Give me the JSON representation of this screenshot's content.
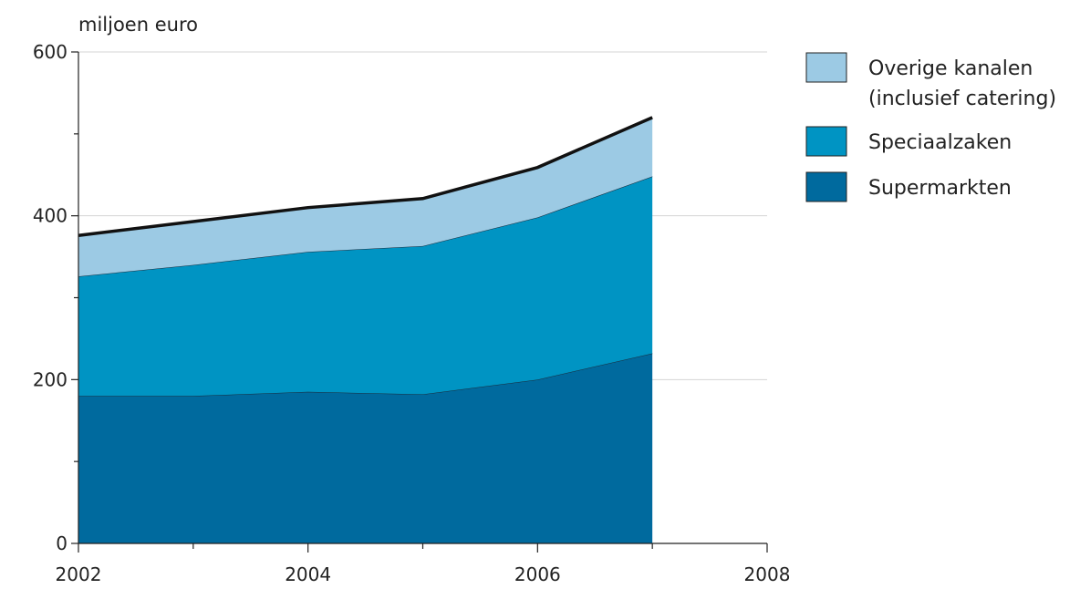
{
  "chart_data": {
    "type": "area",
    "stacked": true,
    "ylabel": "miljoen euro",
    "xlabel": "",
    "xlim": [
      2002,
      2008
    ],
    "ylim": [
      0,
      600
    ],
    "x_ticks": [
      "2002",
      "2004",
      "2006",
      "2008"
    ],
    "y_ticks": [
      "0",
      "200",
      "400",
      "600"
    ],
    "grid": "horizontal",
    "legend_position": "right",
    "x": [
      2002,
      2003,
      2004,
      2005,
      2006,
      2007
    ],
    "series": [
      {
        "name": "Supermarkten",
        "values": [
          180,
          180,
          185,
          182,
          200,
          232
        ],
        "color": "#006a9e"
      },
      {
        "name": "Speciaalzaken",
        "values": [
          146,
          160,
          171,
          181,
          198,
          216
        ],
        "color": "#0094c3"
      },
      {
        "name": "Overige kanalen (inclusief catering)",
        "values": [
          50,
          53,
          54,
          58,
          61,
          72
        ],
        "color": "#9ccae4"
      }
    ],
    "legend": [
      {
        "lines": [
          "Overige kanalen",
          "(inclusief catering)"
        ],
        "color": "#9ccae4"
      },
      {
        "lines": [
          "Speciaalzaken"
        ],
        "color": "#0094c3"
      },
      {
        "lines": [
          "Supermarkten"
        ],
        "color": "#006a9e"
      }
    ],
    "total_line_color": "#111111"
  }
}
